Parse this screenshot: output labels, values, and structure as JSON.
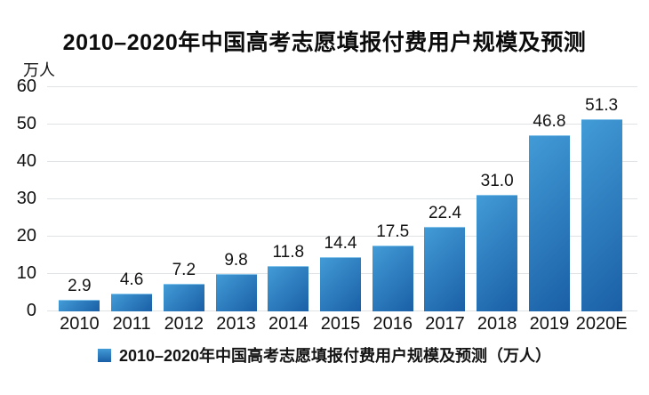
{
  "page": {
    "background": "#ffffff"
  },
  "chart_data": {
    "type": "bar",
    "title": "2010–2020年中国高考志愿填报付费用户规模及预测",
    "unit_label": "万人",
    "categories": [
      "2010",
      "2011",
      "2012",
      "2013",
      "2014",
      "2015",
      "2016",
      "2017",
      "2018",
      "2019",
      "2020E"
    ],
    "values": [
      2.9,
      4.6,
      7.2,
      9.8,
      11.8,
      14.4,
      17.5,
      22.4,
      31.0,
      46.8,
      51.3
    ],
    "data_labels": [
      "2.9",
      "4.6",
      "7.2",
      "9.8",
      "11.8",
      "14.4",
      "17.5",
      "22.4",
      "31.0",
      "46.8",
      "51.3"
    ],
    "ylim": [
      0,
      60
    ],
    "yticks": [
      0,
      10,
      20,
      30,
      40,
      50,
      60
    ],
    "grid": true,
    "legend": {
      "label": "2010–2020年中国高考志愿填报付费用户规模及预测（万人）",
      "position": "bottom"
    },
    "colors": {
      "bar_gradient_start": "#429bd6",
      "bar_gradient_end": "#1a5fa6",
      "gridline": "#e0e3e6",
      "text": "#111111"
    }
  }
}
